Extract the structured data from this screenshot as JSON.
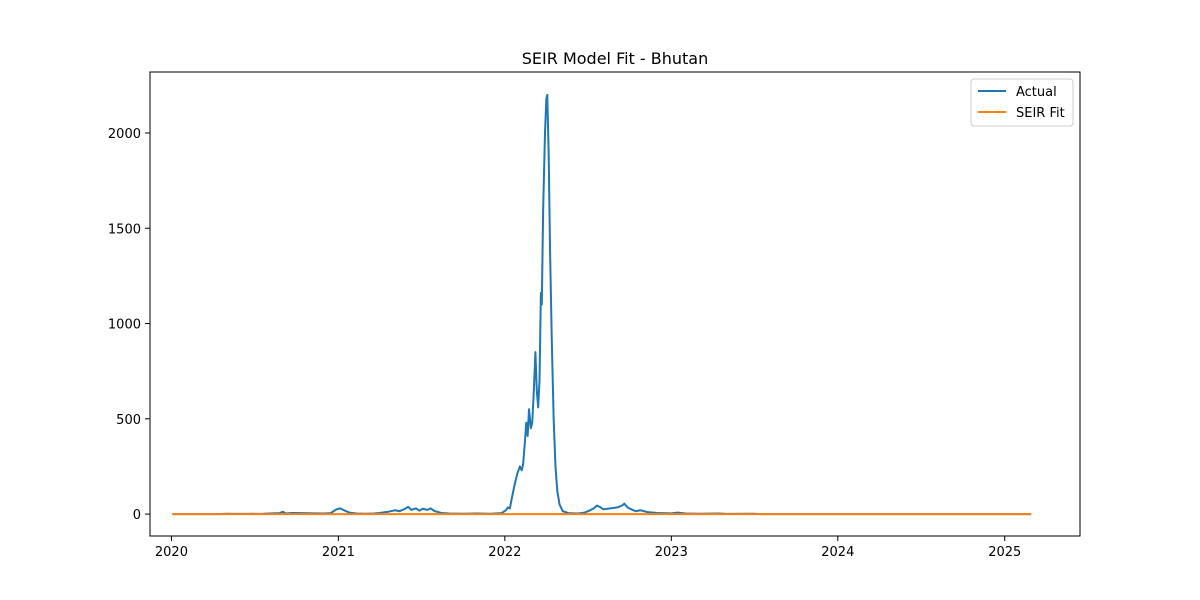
{
  "chart_data": {
    "type": "line",
    "title": "SEIR Model Fit - Bhutan",
    "xlabel": "",
    "ylabel": "",
    "x_ticks": [
      "2020",
      "2021",
      "2022",
      "2023",
      "2024",
      "2025"
    ],
    "y_ticks": [
      0,
      500,
      1000,
      1500,
      2000
    ],
    "xlim": [
      "2019-11-15",
      "2025-06-15"
    ],
    "ylim": [
      -115,
      2320
    ],
    "grid": false,
    "legend_position": "top-right",
    "colors": {
      "actual": "#1f77b4",
      "seir": "#ff7f0e"
    },
    "series": [
      {
        "name": "Actual",
        "points": [
          [
            "2020-01-03",
            0
          ],
          [
            "2020-04-15",
            0
          ],
          [
            "2020-05-01",
            2
          ],
          [
            "2020-05-20",
            1
          ],
          [
            "2020-06-15",
            1
          ],
          [
            "2020-07-20",
            2
          ],
          [
            "2020-08-25",
            5
          ],
          [
            "2020-09-01",
            12
          ],
          [
            "2020-09-08",
            3
          ],
          [
            "2020-09-20",
            6
          ],
          [
            "2020-10-15",
            5
          ],
          [
            "2020-11-10",
            4
          ],
          [
            "2020-12-01",
            3
          ],
          [
            "2020-12-15",
            5
          ],
          [
            "2020-12-28",
            25
          ],
          [
            "2021-01-05",
            30
          ],
          [
            "2021-01-15",
            18
          ],
          [
            "2021-01-25",
            8
          ],
          [
            "2021-02-10",
            3
          ],
          [
            "2021-03-01",
            2
          ],
          [
            "2021-03-20",
            3
          ],
          [
            "2021-04-01",
            6
          ],
          [
            "2021-04-20",
            12
          ],
          [
            "2021-05-05",
            20
          ],
          [
            "2021-05-15",
            15
          ],
          [
            "2021-05-25",
            25
          ],
          [
            "2021-06-03",
            38
          ],
          [
            "2021-06-10",
            22
          ],
          [
            "2021-06-20",
            30
          ],
          [
            "2021-06-28",
            18
          ],
          [
            "2021-07-05",
            28
          ],
          [
            "2021-07-15",
            22
          ],
          [
            "2021-07-22",
            30
          ],
          [
            "2021-08-01",
            15
          ],
          [
            "2021-08-15",
            6
          ],
          [
            "2021-09-01",
            3
          ],
          [
            "2021-10-01",
            2
          ],
          [
            "2021-11-01",
            3
          ],
          [
            "2021-12-01",
            2
          ],
          [
            "2021-12-25",
            5
          ],
          [
            "2022-01-03",
            20
          ],
          [
            "2022-01-08",
            35
          ],
          [
            "2022-01-12",
            30
          ],
          [
            "2022-01-16",
            80
          ],
          [
            "2022-01-22",
            150
          ],
          [
            "2022-01-28",
            210
          ],
          [
            "2022-02-03",
            250
          ],
          [
            "2022-02-07",
            230
          ],
          [
            "2022-02-10",
            260
          ],
          [
            "2022-02-14",
            380
          ],
          [
            "2022-02-17",
            480
          ],
          [
            "2022-02-20",
            410
          ],
          [
            "2022-02-23",
            550
          ],
          [
            "2022-02-27",
            450
          ],
          [
            "2022-03-02",
            480
          ],
          [
            "2022-03-05",
            620
          ],
          [
            "2022-03-09",
            850
          ],
          [
            "2022-03-12",
            650
          ],
          [
            "2022-03-15",
            560
          ],
          [
            "2022-03-18",
            700
          ],
          [
            "2022-03-21",
            1160
          ],
          [
            "2022-03-23",
            1100
          ],
          [
            "2022-03-26",
            1600
          ],
          [
            "2022-03-30",
            2000
          ],
          [
            "2022-04-02",
            2180
          ],
          [
            "2022-04-04",
            2200
          ],
          [
            "2022-04-07",
            1900
          ],
          [
            "2022-04-10",
            1400
          ],
          [
            "2022-04-14",
            900
          ],
          [
            "2022-04-18",
            500
          ],
          [
            "2022-04-22",
            250
          ],
          [
            "2022-04-26",
            120
          ],
          [
            "2022-05-01",
            50
          ],
          [
            "2022-05-08",
            15
          ],
          [
            "2022-05-20",
            5
          ],
          [
            "2022-06-10",
            3
          ],
          [
            "2022-06-25",
            8
          ],
          [
            "2022-07-05",
            18
          ],
          [
            "2022-07-15",
            30
          ],
          [
            "2022-07-22",
            45
          ],
          [
            "2022-07-28",
            38
          ],
          [
            "2022-08-05",
            25
          ],
          [
            "2022-08-20",
            30
          ],
          [
            "2022-09-05",
            35
          ],
          [
            "2022-09-15",
            45
          ],
          [
            "2022-09-20",
            55
          ],
          [
            "2022-09-27",
            35
          ],
          [
            "2022-10-05",
            25
          ],
          [
            "2022-10-15",
            15
          ],
          [
            "2022-10-25",
            20
          ],
          [
            "2022-11-10",
            10
          ],
          [
            "2022-12-01",
            6
          ],
          [
            "2023-01-01",
            4
          ],
          [
            "2023-01-15",
            8
          ],
          [
            "2023-02-01",
            3
          ],
          [
            "2023-03-01",
            2
          ],
          [
            "2023-04-15",
            3
          ],
          [
            "2023-05-01",
            1
          ],
          [
            "2023-07-01",
            2
          ],
          [
            "2023-07-15",
            0
          ],
          [
            "2025-02-28",
            0
          ]
        ]
      },
      {
        "name": "SEIR Fit",
        "points": [
          [
            "2020-01-03",
            0
          ],
          [
            "2025-02-28",
            0
          ]
        ]
      }
    ]
  }
}
